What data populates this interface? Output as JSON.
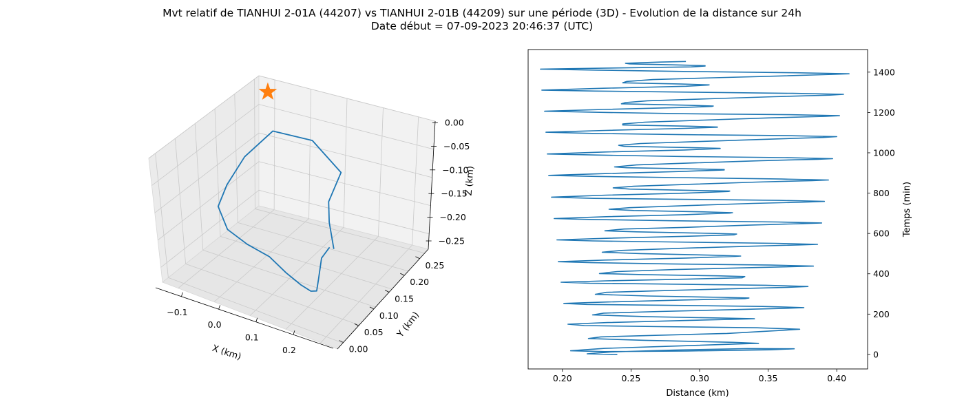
{
  "title_line1": "Mvt relatif de TIANHUI 2-01A (44207) vs TIANHUI 2-01B (44209) sur une période (3D) - Evolution de la distance sur 24h",
  "title_line2": "Date début = 07-09-2023 20:46:37 (UTC)",
  "colors": {
    "series": "#1f77b4",
    "marker": "#ff7f0e",
    "pane": "#f2f2f2",
    "grid": "#cccccc"
  },
  "chart_data": [
    {
      "type": "line3d",
      "xlabel": "X (km)",
      "ylabel": "Y (km)",
      "zlabel": "Z (km)",
      "x_ticks": [
        "−0.1",
        "0.0",
        "0.1",
        "0.2"
      ],
      "y_ticks": [
        "0.00",
        "0.05",
        "0.10",
        "0.15",
        "0.20",
        "0.25"
      ],
      "z_ticks": [
        "0.00",
        "−0.05",
        "−0.10",
        "−0.15",
        "−0.20",
        "−0.25"
      ],
      "xlim": [
        -0.15,
        0.26
      ],
      "ylim": [
        0.0,
        0.28
      ],
      "zlim": [
        -0.27,
        0.0
      ],
      "grid": true,
      "marker": {
        "shape": "star",
        "x": -0.13,
        "y": 0.27,
        "z": -0.02
      },
      "series": [
        {
          "points": [
            [
              0.12,
              0.16,
              -0.2
            ],
            [
              0.115,
              0.15,
              -0.14
            ],
            [
              0.12,
              0.14,
              -0.09
            ],
            [
              0.1,
              0.2,
              -0.07
            ],
            [
              0.0,
              0.24,
              -0.06
            ],
            [
              -0.1,
              0.25,
              -0.08
            ],
            [
              -0.14,
              0.22,
              -0.13
            ],
            [
              -0.14,
              0.17,
              -0.16
            ],
            [
              -0.12,
              0.12,
              -0.17
            ],
            [
              -0.05,
              0.06,
              -0.16
            ],
            [
              0.02,
              0.03,
              -0.15
            ],
            [
              0.08,
              0.02,
              -0.15
            ],
            [
              0.12,
              0.02,
              -0.17
            ],
            [
              0.14,
              0.04,
              -0.2
            ],
            [
              0.14,
              0.07,
              -0.23
            ],
            [
              0.13,
              0.1,
              -0.25
            ],
            [
              0.11,
              0.13,
              -0.25
            ],
            [
              0.1,
              0.15,
              -0.22
            ],
            [
              0.11,
              0.16,
              -0.2
            ]
          ]
        }
      ]
    },
    {
      "type": "line",
      "xlabel": "Distance (km)",
      "ylabel": "Temps (min)",
      "xlim": [
        0.175,
        0.4225
      ],
      "ylim": [
        -72,
        1512
      ],
      "x_ticks": [
        0.2,
        0.25,
        0.3,
        0.35,
        0.4
      ],
      "x_tick_labels": [
        "0.20",
        "0.25",
        "0.30",
        "0.35",
        "0.40"
      ],
      "y_ticks": [
        0,
        200,
        400,
        600,
        800,
        1000,
        1200,
        1400
      ],
      "y_tick_labels": [
        "0",
        "200",
        "400",
        "600",
        "800",
        "1000",
        "1200",
        "1400"
      ],
      "y_axis_side": "right",
      "grid": false,
      "series": [
        {
          "points": [
            [
              0.24,
              0
            ],
            [
              0.218,
              3
            ],
            [
              0.235,
              12
            ],
            [
              0.282,
              22
            ],
            [
              0.335,
              29
            ],
            [
              0.369,
              28
            ],
            [
              0.352,
              23
            ],
            [
              0.291,
              17
            ],
            [
              0.231,
              14
            ],
            [
              0.206,
              18
            ],
            [
              0.231,
              30
            ],
            [
              0.285,
              42
            ],
            [
              0.332,
              53
            ],
            [
              0.343,
              55
            ],
            [
              0.324,
              60
            ],
            [
              0.26,
              70
            ],
            [
              0.219,
              79
            ],
            [
              0.228,
              87
            ],
            [
              0.27,
              95
            ],
            [
              0.32,
              104
            ],
            [
              0.361,
              120
            ],
            [
              0.373,
              125
            ],
            [
              0.342,
              132
            ],
            [
              0.27,
              138
            ],
            [
              0.216,
              143
            ],
            [
              0.204,
              150
            ],
            [
              0.233,
              158
            ],
            [
              0.288,
              168
            ],
            [
              0.333,
              176
            ],
            [
              0.34,
              177
            ],
            [
              0.32,
              180
            ],
            [
              0.262,
              187
            ],
            [
              0.222,
              196
            ],
            [
              0.23,
              205
            ],
            [
              0.271,
              213
            ],
            [
              0.318,
              221
            ],
            [
              0.36,
              228
            ],
            [
              0.376,
              232
            ],
            [
              0.346,
              238
            ],
            [
              0.273,
              244
            ],
            [
              0.218,
              248
            ],
            [
              0.201,
              253
            ],
            [
              0.233,
              260
            ],
            [
              0.289,
              270
            ],
            [
              0.333,
              277
            ],
            [
              0.336,
              280
            ],
            [
              0.316,
              283
            ],
            [
              0.262,
              290
            ],
            [
              0.224,
              298
            ],
            [
              0.232,
              308
            ],
            [
              0.272,
              316
            ],
            [
              0.32,
              325
            ],
            [
              0.364,
              333
            ],
            [
              0.379,
              337
            ],
            [
              0.348,
              343
            ],
            [
              0.275,
              349
            ],
            [
              0.22,
              353
            ],
            [
              0.199,
              358
            ],
            [
              0.232,
              365
            ],
            [
              0.29,
              373
            ],
            [
              0.331,
              380
            ],
            [
              0.333,
              386
            ],
            [
              0.313,
              390
            ],
            [
              0.258,
              396
            ],
            [
              0.227,
              401
            ],
            [
              0.24,
              411
            ],
            [
              0.282,
              421
            ],
            [
              0.33,
              429
            ],
            [
              0.371,
              436
            ],
            [
              0.383,
              438
            ],
            [
              0.352,
              443
            ],
            [
              0.278,
              449
            ],
            [
              0.221,
              455
            ],
            [
              0.197,
              460
            ],
            [
              0.231,
              468
            ],
            [
              0.29,
              478
            ],
            [
              0.326,
              486
            ],
            [
              0.33,
              488
            ],
            [
              0.311,
              492
            ],
            [
              0.257,
              500
            ],
            [
              0.229,
              507
            ],
            [
              0.243,
              516
            ],
            [
              0.285,
              526
            ],
            [
              0.333,
              536
            ],
            [
              0.373,
              543
            ],
            [
              0.386,
              546
            ],
            [
              0.355,
              551
            ],
            [
              0.279,
              558
            ],
            [
              0.222,
              563
            ],
            [
              0.196,
              568
            ],
            [
              0.232,
              576
            ],
            [
              0.29,
              586
            ],
            [
              0.325,
              593
            ],
            [
              0.327,
              597
            ],
            [
              0.307,
              601
            ],
            [
              0.254,
              608
            ],
            [
              0.231,
              613
            ],
            [
              0.245,
              622
            ],
            [
              0.288,
              630
            ],
            [
              0.336,
              641
            ],
            [
              0.376,
              649
            ],
            [
              0.389,
              652
            ],
            [
              0.357,
              657
            ],
            [
              0.28,
              663
            ],
            [
              0.222,
              669
            ],
            [
              0.194,
              674
            ],
            [
              0.232,
              683
            ],
            [
              0.289,
              693
            ],
            [
              0.322,
              701
            ],
            [
              0.324,
              703
            ],
            [
              0.303,
              707
            ],
            [
              0.252,
              714
            ],
            [
              0.234,
              720
            ],
            [
              0.249,
              728
            ],
            [
              0.291,
              738
            ],
            [
              0.339,
              749
            ],
            [
              0.379,
              756
            ],
            [
              0.391,
              759
            ],
            [
              0.358,
              764
            ],
            [
              0.281,
              770
            ],
            [
              0.223,
              774
            ],
            [
              0.192,
              780
            ],
            [
              0.232,
              790
            ],
            [
              0.29,
              800
            ],
            [
              0.321,
              808
            ],
            [
              0.322,
              810
            ],
            [
              0.3,
              813
            ],
            [
              0.249,
              820
            ],
            [
              0.237,
              826
            ],
            [
              0.252,
              834
            ],
            [
              0.294,
              844
            ],
            [
              0.342,
              855
            ],
            [
              0.382,
              862
            ],
            [
              0.394,
              865
            ],
            [
              0.36,
              870
            ],
            [
              0.283,
              877
            ],
            [
              0.224,
              883
            ],
            [
              0.19,
              888
            ],
            [
              0.231,
              897
            ],
            [
              0.289,
              908
            ],
            [
              0.318,
              915
            ],
            [
              0.318,
              917
            ],
            [
              0.297,
              920
            ],
            [
              0.247,
              926
            ],
            [
              0.238,
              930
            ],
            [
              0.254,
              940
            ],
            [
              0.297,
              950
            ],
            [
              0.345,
              961
            ],
            [
              0.386,
              968
            ],
            [
              0.397,
              971
            ],
            [
              0.362,
              976
            ],
            [
              0.285,
              982
            ],
            [
              0.224,
              989
            ],
            [
              0.189,
              994
            ],
            [
              0.231,
              1004
            ],
            [
              0.289,
              1014
            ],
            [
              0.315,
              1021
            ],
            [
              0.315,
              1022
            ],
            [
              0.293,
              1026
            ],
            [
              0.245,
              1032
            ],
            [
              0.241,
              1037
            ],
            [
              0.257,
              1046
            ],
            [
              0.3,
              1056
            ],
            [
              0.347,
              1067
            ],
            [
              0.39,
              1076
            ],
            [
              0.4,
              1080
            ],
            [
              0.364,
              1085
            ],
            [
              0.287,
              1090
            ],
            [
              0.224,
              1096
            ],
            [
              0.188,
              1102
            ],
            [
              0.231,
              1111
            ],
            [
              0.289,
              1121
            ],
            [
              0.313,
              1127
            ],
            [
              0.313,
              1128
            ],
            [
              0.292,
              1132
            ],
            [
              0.244,
              1138
            ],
            [
              0.244,
              1143
            ],
            [
              0.26,
              1152
            ],
            [
              0.303,
              1162
            ],
            [
              0.35,
              1173
            ],
            [
              0.392,
              1181
            ],
            [
              0.402,
              1184
            ],
            [
              0.365,
              1189
            ],
            [
              0.288,
              1194
            ],
            [
              0.224,
              1201
            ],
            [
              0.187,
              1206
            ],
            [
              0.23,
              1215
            ],
            [
              0.289,
              1225
            ],
            [
              0.309,
              1230
            ],
            [
              0.31,
              1232
            ],
            [
              0.29,
              1236
            ],
            [
              0.243,
              1243
            ],
            [
              0.246,
              1249
            ],
            [
              0.262,
              1258
            ],
            [
              0.307,
              1268
            ],
            [
              0.354,
              1278
            ],
            [
              0.395,
              1286
            ],
            [
              0.405,
              1290
            ],
            [
              0.368,
              1295
            ],
            [
              0.29,
              1301
            ],
            [
              0.224,
              1306
            ],
            [
              0.185,
              1311
            ],
            [
              0.23,
              1320
            ],
            [
              0.29,
              1330
            ],
            [
              0.306,
              1336
            ],
            [
              0.307,
              1337
            ],
            [
              0.287,
              1341
            ],
            [
              0.244,
              1347
            ],
            [
              0.247,
              1354
            ],
            [
              0.266,
              1363
            ],
            [
              0.31,
              1372
            ],
            [
              0.358,
              1381
            ],
            [
              0.398,
              1389
            ],
            [
              0.409,
              1392
            ],
            [
              0.37,
              1397
            ],
            [
              0.292,
              1403
            ],
            [
              0.226,
              1410
            ],
            [
              0.184,
              1415
            ],
            [
              0.232,
              1420
            ],
            [
              0.294,
              1426
            ],
            [
              0.304,
              1430
            ],
            [
              0.304,
              1432
            ],
            [
              0.283,
              1436
            ],
            [
              0.249,
              1441
            ],
            [
              0.246,
              1444
            ],
            [
              0.271,
              1450
            ],
            [
              0.29,
              1453
            ]
          ]
        }
      ]
    }
  ]
}
